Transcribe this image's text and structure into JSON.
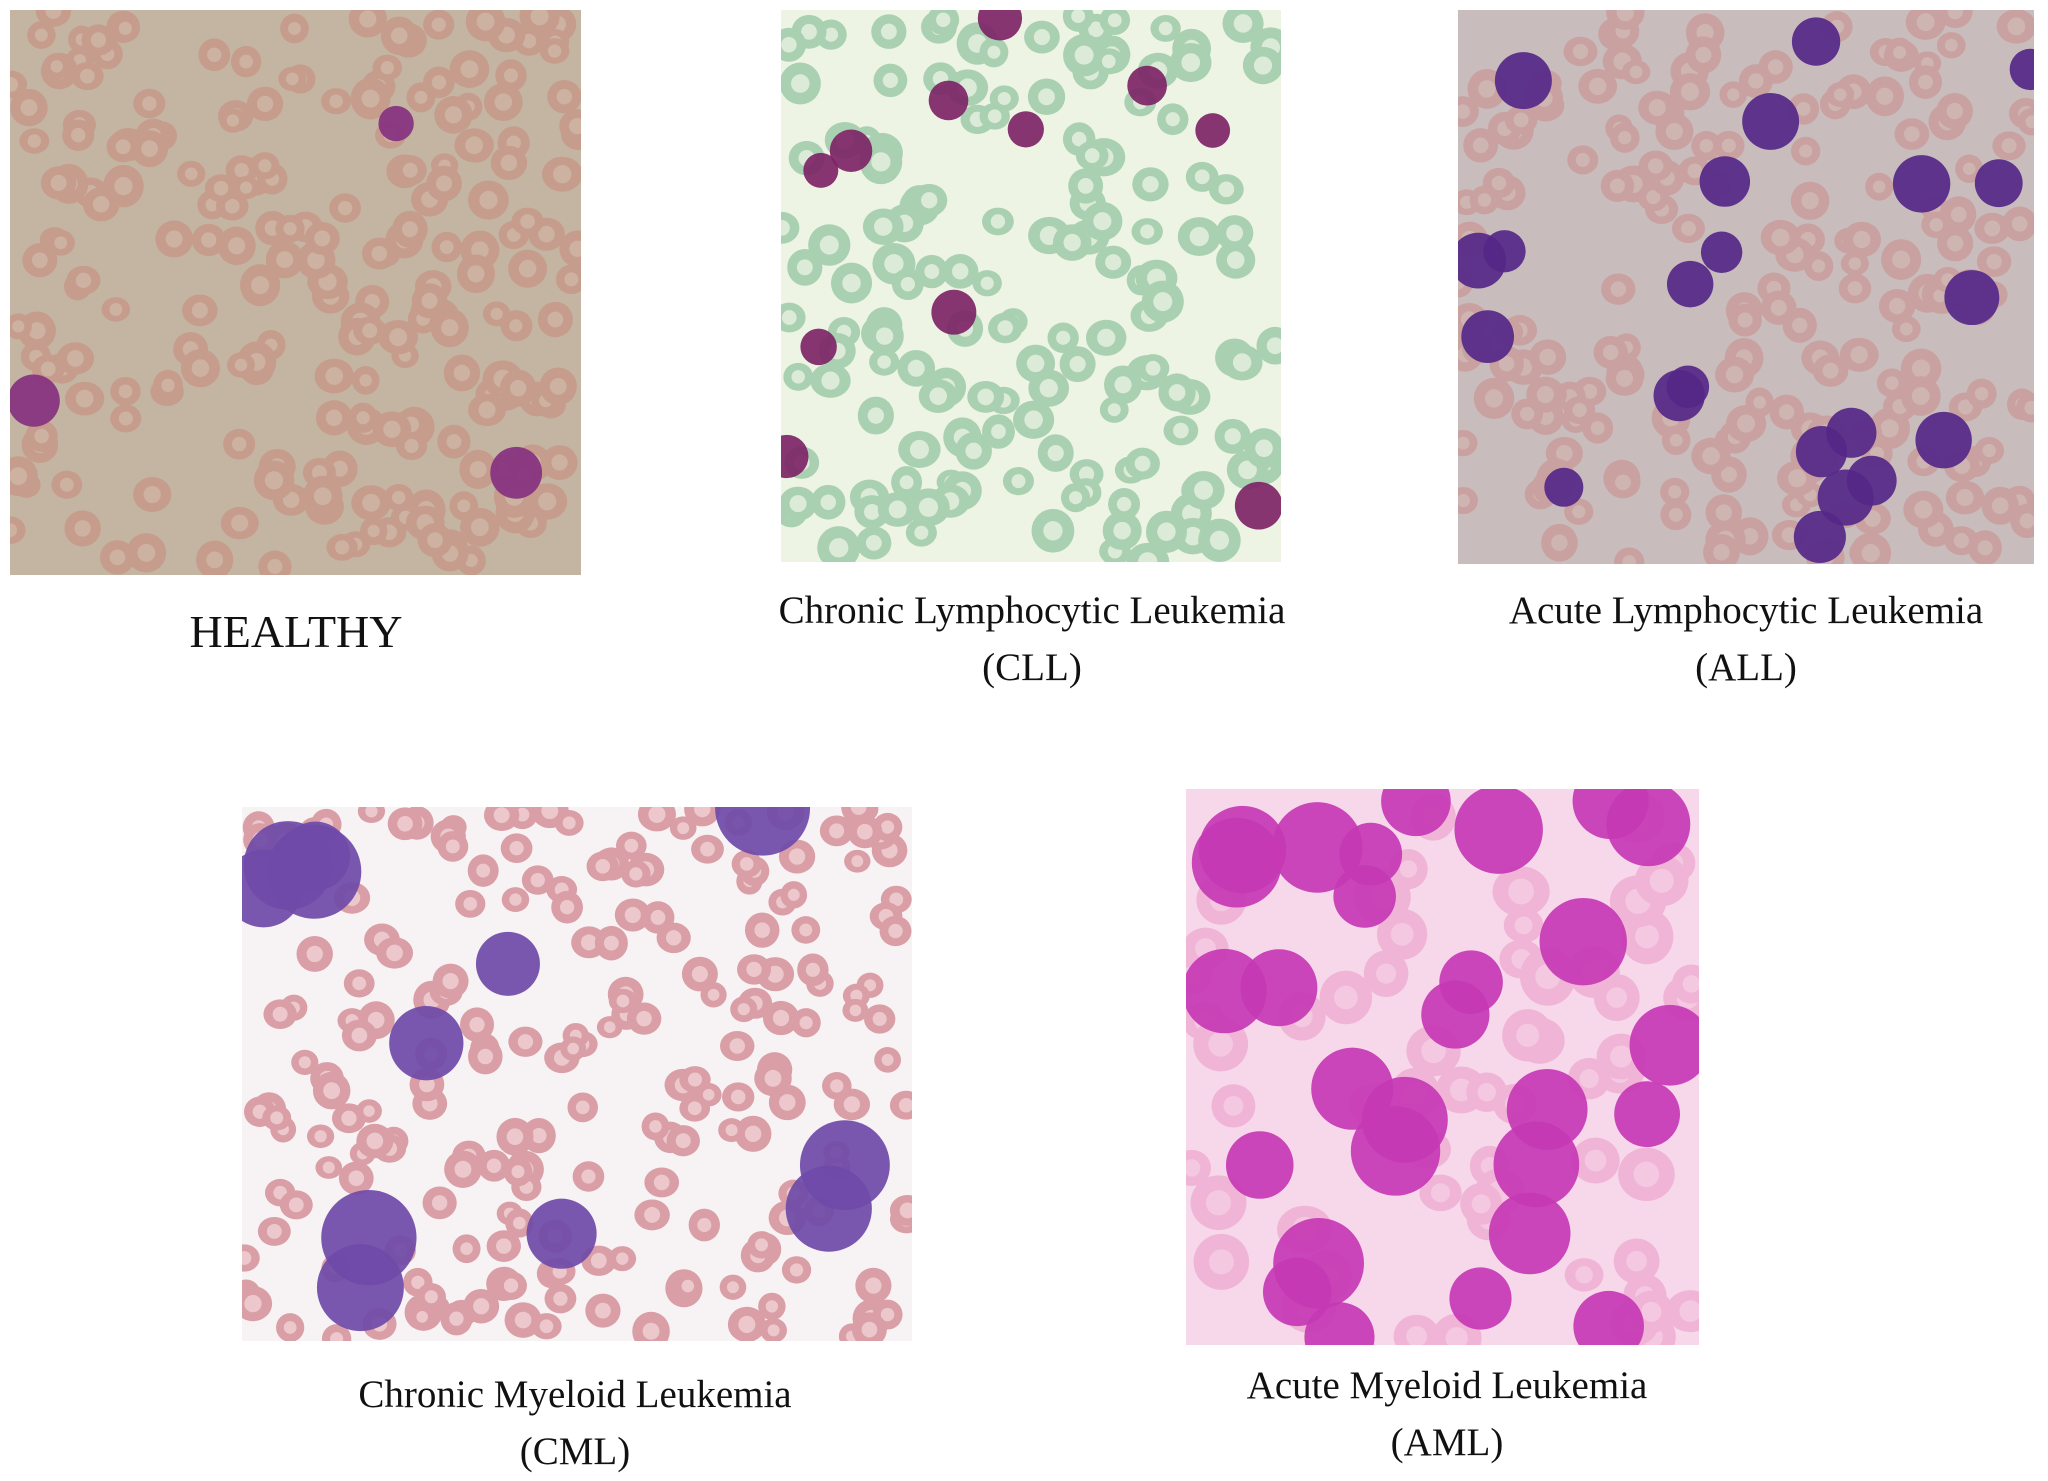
{
  "panels": [
    {
      "title": "HEALTHY"
    },
    {
      "title": "Chronic Lymphocytic Leukemia",
      "abbr": "(CLL)"
    },
    {
      "title": "Acute Lymphocytic Leukemia",
      "abbr": "(ALL)"
    },
    {
      "title": "Chronic Myeloid Leukemia",
      "abbr": "(CML)"
    },
    {
      "title": "Acute Myeloid Leukemia",
      "abbr": "(AML)"
    }
  ]
}
